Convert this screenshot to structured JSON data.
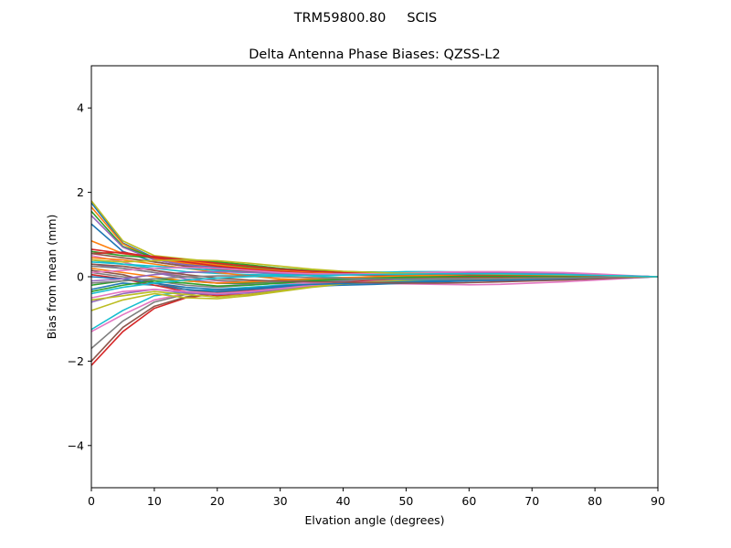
{
  "suptitle": "TRM59800.80     SCIS",
  "chart_data": {
    "type": "line",
    "title": "Delta Antenna Phase Biases: QZSS-L2",
    "xlabel": "Elvation angle (degrees)",
    "ylabel": "Bias from mean (mm)",
    "xlim": [
      0,
      90
    ],
    "ylim": [
      -5,
      5
    ],
    "xticks": [
      0,
      10,
      20,
      30,
      40,
      50,
      60,
      70,
      80,
      90
    ],
    "yticks": [
      -4,
      -2,
      0,
      2,
      4
    ],
    "grid": false,
    "x": [
      0,
      5,
      10,
      15,
      20,
      25,
      30,
      35,
      40,
      45,
      50,
      55,
      60,
      65,
      70,
      75,
      80,
      85,
      90
    ],
    "series": [
      {
        "color": "#1f77b4",
        "values": [
          1.75,
          0.8,
          0.45,
          0.3,
          0.22,
          0.18,
          0.15,
          0.12,
          0.1,
          0.08,
          0.07,
          0.06,
          0.06,
          0.05,
          0.05,
          0.04,
          0.03,
          0.02,
          0.0
        ]
      },
      {
        "color": "#ff7f0e",
        "values": [
          1.65,
          0.78,
          0.42,
          0.32,
          0.25,
          0.2,
          0.16,
          0.13,
          0.11,
          0.1,
          0.09,
          0.08,
          0.07,
          0.06,
          0.05,
          0.04,
          0.03,
          0.02,
          0.0
        ]
      },
      {
        "color": "#2ca02c",
        "values": [
          1.55,
          0.72,
          0.45,
          0.38,
          0.3,
          0.22,
          0.17,
          0.14,
          0.12,
          0.11,
          0.1,
          0.1,
          0.09,
          0.08,
          0.06,
          0.05,
          0.03,
          0.02,
          0.0
        ]
      },
      {
        "color": "#d62728",
        "values": [
          -2.1,
          -1.3,
          -0.75,
          -0.5,
          -0.4,
          -0.32,
          -0.25,
          -0.18,
          -0.12,
          -0.08,
          -0.05,
          -0.03,
          -0.02,
          -0.02,
          -0.02,
          -0.02,
          -0.02,
          -0.01,
          0.0
        ]
      },
      {
        "color": "#9467bd",
        "values": [
          1.45,
          0.7,
          0.4,
          0.28,
          0.2,
          0.16,
          0.12,
          0.1,
          0.08,
          0.07,
          0.06,
          0.05,
          0.05,
          0.04,
          0.03,
          0.03,
          0.02,
          0.01,
          0.0
        ]
      },
      {
        "color": "#8c564b",
        "values": [
          -2.0,
          -1.2,
          -0.7,
          -0.48,
          -0.38,
          -0.3,
          -0.22,
          -0.16,
          -0.11,
          -0.07,
          -0.04,
          -0.03,
          -0.02,
          -0.02,
          -0.02,
          -0.02,
          -0.01,
          -0.01,
          0.0
        ]
      },
      {
        "color": "#e377c2",
        "values": [
          -1.3,
          -0.9,
          -0.55,
          -0.4,
          -0.32,
          -0.26,
          -0.2,
          -0.15,
          -0.1,
          -0.07,
          -0.05,
          -0.04,
          -0.03,
          -0.03,
          -0.03,
          -0.02,
          -0.02,
          -0.01,
          0.0
        ]
      },
      {
        "color": "#7f7f7f",
        "values": [
          -1.7,
          -1.05,
          -0.6,
          -0.42,
          -0.34,
          -0.28,
          -0.21,
          -0.15,
          -0.1,
          -0.06,
          -0.04,
          -0.03,
          -0.02,
          -0.02,
          -0.02,
          -0.02,
          -0.01,
          -0.01,
          0.0
        ]
      },
      {
        "color": "#bcbd22",
        "values": [
          1.8,
          0.85,
          0.5,
          0.42,
          0.35,
          0.28,
          0.2,
          0.15,
          0.12,
          0.1,
          0.09,
          0.09,
          0.08,
          0.07,
          0.06,
          0.05,
          0.03,
          0.02,
          0.0
        ]
      },
      {
        "color": "#17becf",
        "values": [
          -1.25,
          -0.8,
          -0.45,
          -0.35,
          -0.3,
          -0.25,
          -0.2,
          -0.15,
          -0.12,
          -0.09,
          -0.07,
          -0.05,
          -0.04,
          -0.04,
          -0.03,
          -0.03,
          -0.02,
          -0.01,
          0.0
        ]
      },
      {
        "color": "#1f77b4",
        "values": [
          1.25,
          0.6,
          0.35,
          0.25,
          0.18,
          0.14,
          0.11,
          0.09,
          0.08,
          0.07,
          0.06,
          0.06,
          0.05,
          0.05,
          0.04,
          0.03,
          0.02,
          0.01,
          0.0
        ]
      },
      {
        "color": "#ff7f0e",
        "values": [
          0.85,
          0.55,
          0.45,
          0.38,
          0.28,
          0.2,
          0.14,
          0.1,
          0.07,
          0.05,
          0.04,
          0.03,
          0.03,
          0.03,
          0.02,
          0.02,
          0.01,
          0.01,
          0.0
        ]
      },
      {
        "color": "#2ca02c",
        "values": [
          0.6,
          0.5,
          0.45,
          0.4,
          0.35,
          0.28,
          0.2,
          0.14,
          0.1,
          0.08,
          0.07,
          0.06,
          0.06,
          0.05,
          0.04,
          0.03,
          0.02,
          0.01,
          0.0
        ]
      },
      {
        "color": "#d62728",
        "values": [
          0.55,
          0.58,
          0.45,
          0.35,
          0.25,
          0.18,
          0.12,
          0.08,
          0.05,
          0.03,
          0.02,
          0.02,
          0.02,
          0.02,
          0.02,
          0.01,
          0.01,
          0.0,
          0.0
        ]
      },
      {
        "color": "#9467bd",
        "values": [
          0.3,
          0.2,
          0.1,
          -0.05,
          -0.15,
          -0.18,
          -0.16,
          -0.13,
          -0.1,
          -0.08,
          -0.08,
          -0.08,
          -0.09,
          -0.09,
          -0.08,
          -0.06,
          -0.04,
          -0.02,
          0.0
        ]
      },
      {
        "color": "#8c564b",
        "values": [
          0.15,
          0.05,
          -0.15,
          -0.3,
          -0.4,
          -0.38,
          -0.3,
          -0.22,
          -0.15,
          -0.1,
          -0.06,
          -0.03,
          -0.02,
          -0.02,
          -0.02,
          -0.02,
          -0.01,
          -0.01,
          0.0
        ]
      },
      {
        "color": "#e377c2",
        "values": [
          0.5,
          0.35,
          0.15,
          0.0,
          -0.1,
          -0.15,
          -0.15,
          -0.15,
          -0.15,
          -0.16,
          -0.17,
          -0.18,
          -0.19,
          -0.18,
          -0.15,
          -0.12,
          -0.08,
          -0.04,
          0.0
        ]
      },
      {
        "color": "#7f7f7f",
        "values": [
          0.1,
          0.0,
          -0.1,
          -0.2,
          -0.25,
          -0.2,
          -0.15,
          -0.1,
          -0.07,
          -0.05,
          -0.04,
          -0.04,
          -0.04,
          -0.04,
          -0.04,
          -0.03,
          -0.02,
          -0.01,
          0.0
        ]
      },
      {
        "color": "#bcbd22",
        "values": [
          -0.8,
          -0.55,
          -0.4,
          -0.5,
          -0.52,
          -0.45,
          -0.35,
          -0.25,
          -0.18,
          -0.13,
          -0.1,
          -0.08,
          -0.07,
          -0.06,
          -0.05,
          -0.04,
          -0.03,
          -0.01,
          0.0
        ]
      },
      {
        "color": "#17becf",
        "values": [
          0.4,
          0.3,
          0.2,
          0.12,
          0.08,
          0.05,
          0.04,
          0.05,
          0.08,
          0.1,
          0.12,
          0.12,
          0.11,
          0.1,
          0.08,
          0.06,
          0.04,
          0.02,
          0.0
        ]
      },
      {
        "color": "#1f77b4",
        "values": [
          -0.3,
          -0.15,
          -0.2,
          -0.3,
          -0.35,
          -0.3,
          -0.25,
          -0.22,
          -0.2,
          -0.18,
          -0.15,
          -0.12,
          -0.1,
          -0.08,
          -0.07,
          -0.05,
          -0.03,
          -0.02,
          0.0
        ]
      },
      {
        "color": "#ff7f0e",
        "values": [
          0.45,
          0.4,
          0.3,
          0.2,
          0.1,
          0.02,
          -0.05,
          -0.08,
          -0.08,
          -0.06,
          -0.04,
          -0.03,
          -0.03,
          -0.03,
          -0.03,
          -0.02,
          -0.02,
          -0.01,
          0.0
        ]
      },
      {
        "color": "#2ca02c",
        "values": [
          -0.2,
          -0.1,
          -0.05,
          -0.1,
          -0.15,
          -0.15,
          -0.12,
          -0.08,
          -0.05,
          -0.03,
          -0.02,
          -0.02,
          -0.02,
          -0.03,
          -0.03,
          -0.03,
          -0.02,
          -0.01,
          0.0
        ]
      },
      {
        "color": "#d62728",
        "values": [
          0.05,
          -0.05,
          -0.2,
          -0.35,
          -0.45,
          -0.42,
          -0.32,
          -0.22,
          -0.14,
          -0.08,
          -0.05,
          -0.03,
          -0.02,
          -0.02,
          -0.02,
          -0.02,
          -0.01,
          -0.01,
          0.0
        ]
      },
      {
        "color": "#9467bd",
        "values": [
          -0.6,
          -0.4,
          -0.3,
          -0.38,
          -0.42,
          -0.38,
          -0.3,
          -0.22,
          -0.16,
          -0.12,
          -0.09,
          -0.07,
          -0.06,
          -0.05,
          -0.04,
          -0.03,
          -0.02,
          -0.01,
          0.0
        ]
      },
      {
        "color": "#8c564b",
        "values": [
          0.55,
          0.45,
          0.35,
          0.25,
          0.18,
          0.12,
          0.08,
          0.06,
          0.05,
          0.05,
          0.05,
          0.06,
          0.06,
          0.06,
          0.05,
          0.04,
          0.03,
          0.02,
          0.0
        ]
      },
      {
        "color": "#e377c2",
        "values": [
          -0.5,
          -0.35,
          -0.3,
          -0.35,
          -0.4,
          -0.35,
          -0.28,
          -0.2,
          -0.15,
          -0.11,
          -0.09,
          -0.07,
          -0.06,
          -0.05,
          -0.04,
          -0.03,
          -0.02,
          -0.01,
          0.0
        ]
      },
      {
        "color": "#7f7f7f",
        "values": [
          0.25,
          0.2,
          0.1,
          0.0,
          -0.08,
          -0.12,
          -0.12,
          -0.1,
          -0.08,
          -0.06,
          -0.05,
          -0.04,
          -0.04,
          -0.04,
          -0.03,
          -0.03,
          -0.02,
          -0.01,
          0.0
        ]
      },
      {
        "color": "#bcbd22",
        "values": [
          -0.55,
          -0.45,
          -0.35,
          -0.42,
          -0.48,
          -0.42,
          -0.33,
          -0.24,
          -0.17,
          -0.12,
          -0.09,
          -0.07,
          -0.06,
          -0.05,
          -0.04,
          -0.03,
          -0.02,
          -0.01,
          0.0
        ]
      },
      {
        "color": "#17becf",
        "values": [
          0.35,
          0.3,
          0.25,
          0.2,
          0.15,
          0.1,
          0.06,
          0.02,
          -0.02,
          -0.05,
          -0.07,
          -0.08,
          -0.08,
          -0.07,
          -0.06,
          -0.05,
          -0.03,
          -0.02,
          0.0
        ]
      },
      {
        "color": "#1f77b4",
        "values": [
          0.0,
          -0.05,
          -0.15,
          -0.25,
          -0.3,
          -0.28,
          -0.22,
          -0.18,
          -0.16,
          -0.14,
          -0.12,
          -0.1,
          -0.09,
          -0.08,
          -0.06,
          -0.05,
          -0.03,
          -0.02,
          0.0
        ]
      },
      {
        "color": "#ff7f0e",
        "values": [
          0.2,
          0.1,
          0.0,
          -0.1,
          -0.15,
          -0.12,
          -0.08,
          -0.05,
          -0.02,
          0.0,
          0.02,
          0.03,
          0.03,
          0.03,
          0.03,
          0.02,
          0.01,
          0.01,
          0.0
        ]
      },
      {
        "color": "#2ca02c",
        "values": [
          -0.35,
          -0.2,
          -0.1,
          -0.15,
          -0.22,
          -0.2,
          -0.15,
          -0.1,
          -0.06,
          -0.03,
          -0.01,
          0.0,
          0.01,
          0.01,
          0.01,
          0.01,
          0.0,
          0.0,
          0.0
        ]
      },
      {
        "color": "#d62728",
        "values": [
          0.65,
          0.55,
          0.48,
          0.4,
          0.32,
          0.25,
          0.18,
          0.13,
          0.1,
          0.08,
          0.07,
          0.06,
          0.05,
          0.05,
          0.04,
          0.03,
          0.02,
          0.01,
          0.0
        ]
      },
      {
        "color": "#9467bd",
        "values": [
          -0.1,
          -0.05,
          0.05,
          0.1,
          0.12,
          0.1,
          0.08,
          0.07,
          0.07,
          0.07,
          0.08,
          0.09,
          0.1,
          0.1,
          0.09,
          0.07,
          0.05,
          0.02,
          0.0
        ]
      },
      {
        "color": "#8c564b",
        "values": [
          0.3,
          0.25,
          0.15,
          0.05,
          -0.03,
          -0.08,
          -0.1,
          -0.12,
          -0.13,
          -0.14,
          -0.15,
          -0.15,
          -0.14,
          -0.12,
          -0.1,
          -0.08,
          -0.05,
          -0.02,
          0.0
        ]
      },
      {
        "color": "#e377c2",
        "values": [
          0.1,
          0.15,
          0.2,
          0.22,
          0.2,
          0.15,
          0.1,
          0.07,
          0.06,
          0.07,
          0.09,
          0.11,
          0.12,
          0.12,
          0.11,
          0.1,
          0.07,
          0.03,
          0.0
        ]
      },
      {
        "color": "#7f7f7f",
        "values": [
          -0.15,
          -0.1,
          -0.05,
          0.0,
          0.02,
          0.02,
          0.0,
          -0.02,
          -0.04,
          -0.05,
          -0.06,
          -0.06,
          -0.06,
          -0.05,
          -0.04,
          -0.03,
          -0.02,
          -0.01,
          0.0
        ]
      },
      {
        "color": "#bcbd22",
        "values": [
          0.4,
          0.35,
          0.38,
          0.4,
          0.38,
          0.32,
          0.25,
          0.18,
          0.13,
          0.1,
          0.08,
          0.07,
          0.07,
          0.06,
          0.05,
          0.04,
          0.03,
          0.01,
          0.0
        ]
      },
      {
        "color": "#17becf",
        "values": [
          -0.4,
          -0.25,
          -0.15,
          -0.08,
          -0.03,
          0.0,
          0.02,
          0.03,
          0.04,
          0.05,
          0.06,
          0.07,
          0.07,
          0.07,
          0.06,
          0.05,
          0.03,
          0.02,
          0.0
        ]
      }
    ]
  }
}
